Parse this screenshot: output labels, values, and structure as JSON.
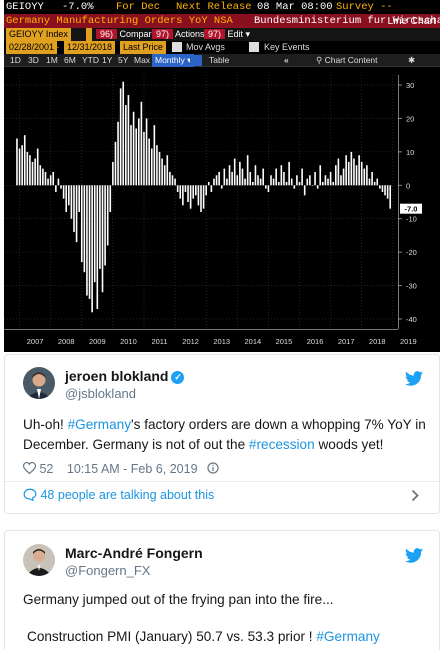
{
  "terminal": {
    "ticker": "GEIOYY",
    "last_change": "-7.0%",
    "period": "For Dec",
    "next_release_label": "Next Release",
    "next_release_value": "08 Mar 08:00",
    "survey": "Survey --",
    "name": "Germany Manufacturing Orders YoY NSA",
    "source": "Bundesministerium fur Wirtscha...",
    "chart_type_label": "Line Chart",
    "date_from": "02/28/2001",
    "date_to": "12/31/2018",
    "index_label": "GEIOYY Index",
    "compare_label": "Compare",
    "actions_label": "Actions",
    "edit_label": "Edit",
    "last_price_label": "Last Price",
    "mov_avgs_label": "Mov Avgs",
    "key_events_label": "Key Events",
    "periods": [
      "1D",
      "3D",
      "1M",
      "6M",
      "YTD",
      "1Y",
      "5Y",
      "Max"
    ],
    "frequency": "Monthly",
    "table_label": "Table",
    "chart_content_label": "Chart Content",
    "current_value_tag": "-7.0",
    "colors": {
      "bar": "#ffffff",
      "background": "#000000",
      "header_red": "#8a1020",
      "amber": "#ffb300"
    }
  },
  "chart_data": {
    "type": "bar",
    "title": "Germany Manufacturing Orders YoY NSA",
    "xlabel": "",
    "ylabel": "",
    "ylim": [
      -43,
      33
    ],
    "y_ticks": [
      30,
      20,
      10,
      0,
      -10,
      -20,
      -30,
      -40
    ],
    "x_tick_labels": [
      "2007",
      "2008",
      "2009",
      "2010",
      "2011",
      "2012",
      "2013",
      "2014",
      "2015",
      "2016",
      "2017",
      "2018",
      "2019"
    ],
    "x_range": [
      "2006-07",
      "2019-03"
    ],
    "grid": true,
    "series": [
      {
        "frequency": "monthly",
        "start": "2006-12",
        "values": [
          14.0,
          11.0,
          12.0,
          15.0,
          10.0,
          9.0,
          7.0,
          8.0,
          11.0,
          6.0,
          5.0,
          4.0,
          2.0,
          3.0,
          4.0,
          -2.0,
          2.0,
          -1.0,
          -4.0,
          -8.0,
          -6.0,
          -10.0,
          -14.0,
          -17.0,
          -8.0,
          -23.0,
          -26.0,
          -33.0,
          -34.0,
          -38.0,
          -29.0,
          -37.0,
          -25.0,
          -32.0,
          -24.0,
          -18.0,
          -8.0,
          7.0,
          13.0,
          19.0,
          29.0,
          31.0,
          24.0,
          27.0,
          18.0,
          22.0,
          17.0,
          20.0,
          25.0,
          16.0,
          20.0,
          14.0,
          11.0,
          18.0,
          12.0,
          10.0,
          8.0,
          6.0,
          9.0,
          4.0,
          3.0,
          2.0,
          -2.0,
          -4.0,
          -6.0,
          -2.0,
          -5.0,
          -7.0,
          -4.0,
          -3.0,
          -6.0,
          -8.0,
          -7.0,
          -3.0,
          1.0,
          -2.0,
          2.0,
          3.0,
          4.0,
          -1.0,
          5.0,
          2.0,
          6.0,
          4.0,
          8.0,
          3.0,
          7.0,
          5.0,
          2.0,
          9.0,
          4.0,
          1.0,
          6.0,
          3.0,
          2.0,
          5.0,
          -1.0,
          -2.0,
          3.0,
          2.0,
          5.0,
          1.0,
          6.0,
          4.0,
          1.0,
          7.0,
          2.0,
          -1.0,
          3.0,
          1.0,
          5.0,
          -3.0,
          2.0,
          3.0,
          0.0,
          4.0,
          -1.0,
          6.0,
          1.0,
          3.0,
          2.0,
          4.0,
          1.0,
          6.0,
          8.0,
          3.0,
          5.0,
          9.0,
          7.0,
          10.0,
          8.0,
          6.0,
          9.0,
          7.0,
          5.0,
          6.0,
          2.0,
          4.0,
          1.0,
          2.0,
          -1.0,
          -2.0,
          -3.0,
          -4.0,
          -7.0
        ]
      }
    ]
  },
  "tweet1": {
    "author": "jeroen blokland",
    "handle": "@jsblokland",
    "text_before": "Uh-oh! ",
    "hashtag1": "#Germany",
    "text_mid": "'s factory orders are down a whopping 7% YoY in December. Germany is not of out the ",
    "hashtag2": "#recession",
    "text_after": " woods yet!",
    "likes": "52",
    "time": "10:15 AM - Feb 6, 2019",
    "talking": "48 people are talking about this"
  },
  "tweet2": {
    "author": "Marc-André Fongern",
    "handle": "@Fongern_FX",
    "line1": "Germany jumped out of the frying pan into the fire...",
    "line2": "Construction PMI (January) 50.7 vs. 53.3 prior ! ",
    "hashtag": "#Germany"
  }
}
